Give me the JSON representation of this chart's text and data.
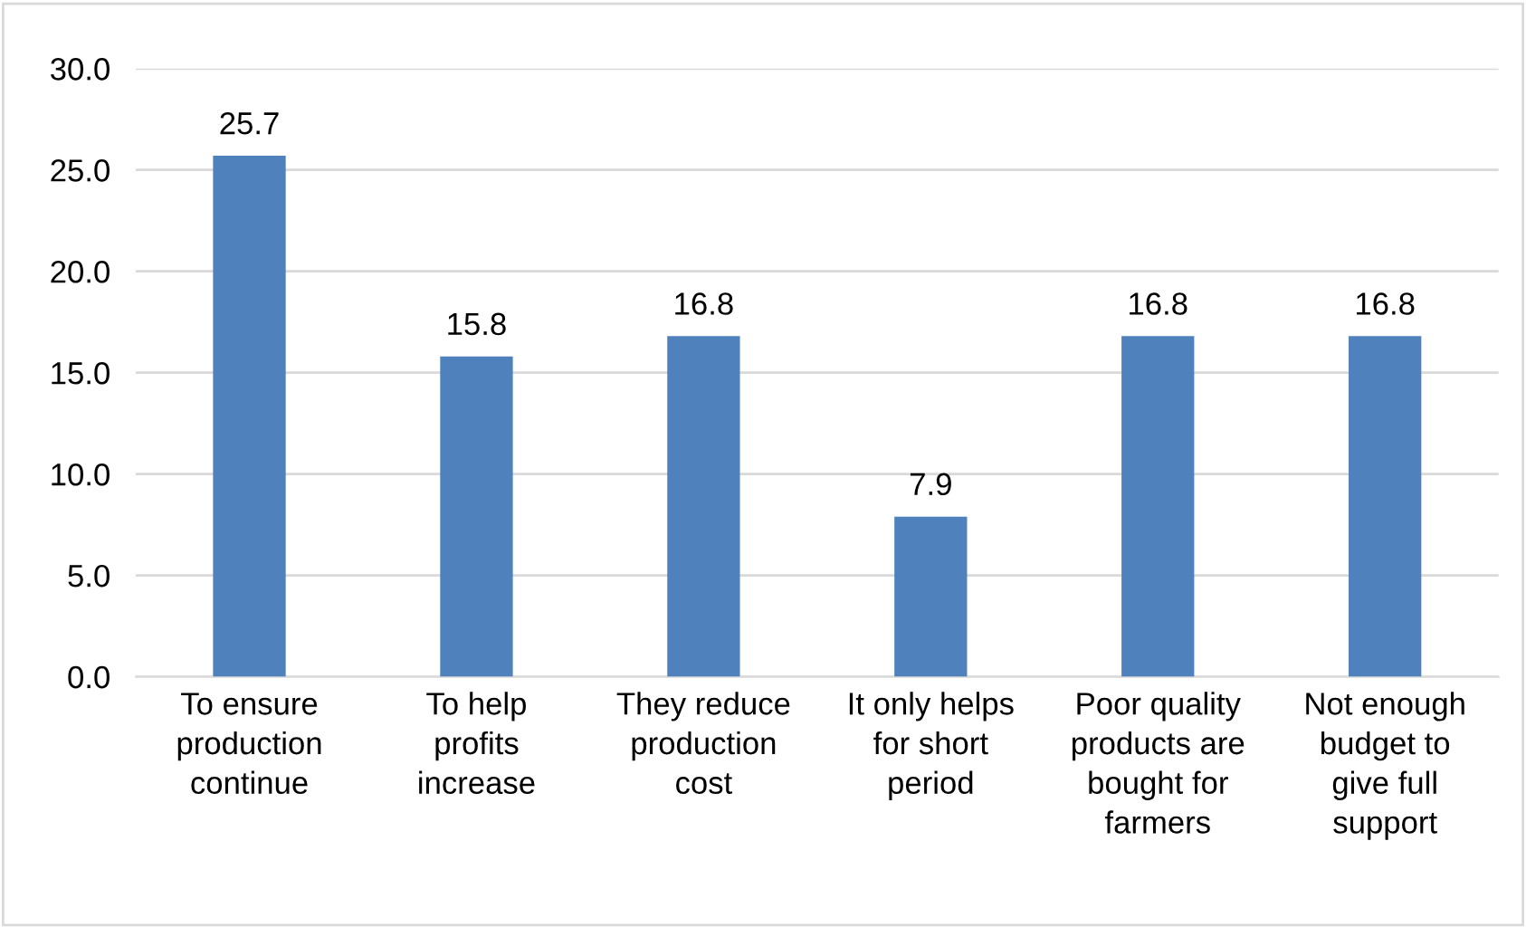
{
  "chart_data": {
    "type": "bar",
    "categories": [
      "To ensure\nproduction\ncontinue",
      "To help\nprofits\nincrease",
      "They reduce\nproduction\ncost",
      "It only helps\nfor short\nperiod",
      "Poor quality\nproducts are\nbought for\nfarmers",
      "Not enough\nbudget to\ngive full\nsupport"
    ],
    "values": [
      25.7,
      15.8,
      16.8,
      7.9,
      16.8,
      16.8
    ],
    "color": "#4f81bd",
    "ylim": [
      0,
      30
    ],
    "yticks": [
      {
        "value": 0,
        "label": "0.0"
      },
      {
        "value": 5,
        "label": "5.0"
      },
      {
        "value": 10,
        "label": "10.0"
      },
      {
        "value": 15,
        "label": "15.0"
      },
      {
        "value": 20,
        "label": "20.0"
      },
      {
        "value": 25,
        "label": "25.0"
      },
      {
        "value": 30,
        "label": "30.0"
      }
    ],
    "grid": "y",
    "data_labels": true
  }
}
